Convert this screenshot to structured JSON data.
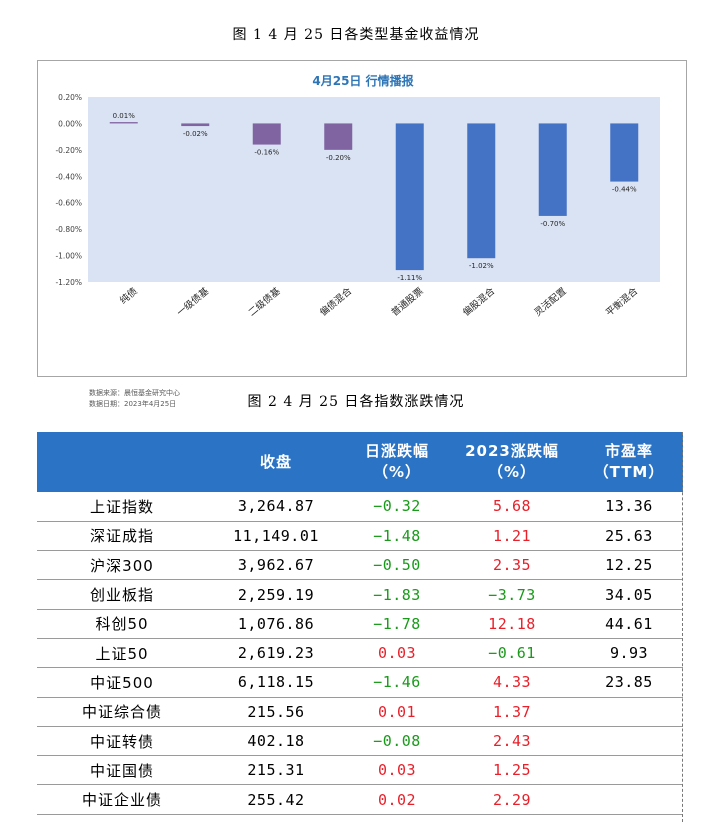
{
  "figure1": {
    "caption": "图 1  4 月 25 日各类型基金收益情况",
    "source_line": "数据来源：晨恒基金研究中心",
    "date_line": "数据日期：2023年4月25日"
  },
  "chart_data": {
    "type": "bar",
    "title": "4月25日  行情播报",
    "categories": [
      "纯债",
      "一级债基",
      "二级债基",
      "偏债混合",
      "普通股票",
      "偏股混合",
      "灵活配置",
      "平衡混合"
    ],
    "values": [
      0.01,
      -0.02,
      -0.16,
      -0.2,
      -1.11,
      -1.02,
      -0.7,
      -0.44
    ],
    "value_labels": [
      "0.01%",
      "-0.02%",
      "-0.16%",
      "-0.20%",
      "-1.11%",
      "-1.02%",
      "-0.70%",
      "-0.44%"
    ],
    "bar_colors": [
      "#8064a2",
      "#8064a2",
      "#8064a2",
      "#8064a2",
      "#4472c4",
      "#4472c4",
      "#4472c4",
      "#4472c4"
    ],
    "yticks": [
      "0.20%",
      "0.00%",
      "-0.20%",
      "-0.40%",
      "-0.60%",
      "-0.80%",
      "-1.00%",
      "-1.20%"
    ],
    "ylim": [
      -1.2,
      0.2
    ],
    "plot_bg": "#dae3f3",
    "grid": false
  },
  "figure2": {
    "caption": "图 2  4 月 25 日各指数涨跌情况",
    "headers": [
      "",
      "收盘",
      "日涨跌幅\n（%）",
      "2023涨跌幅\n（%）",
      "市盈率\n（TTM）"
    ],
    "rows": [
      {
        "name": "上证指数",
        "close": "3,264.87",
        "day": "−0.32",
        "ytd": "5.68",
        "pe": "13.36"
      },
      {
        "name": "深证成指",
        "close": "11,149.01",
        "day": "−1.48",
        "ytd": "1.21",
        "pe": "25.63"
      },
      {
        "name": "沪深300",
        "close": "3,962.67",
        "day": "−0.50",
        "ytd": "2.35",
        "pe": "12.25"
      },
      {
        "name": "创业板指",
        "close": "2,259.19",
        "day": "−1.83",
        "ytd": "−3.73",
        "pe": "34.05"
      },
      {
        "name": "科创50",
        "close": "1,076.86",
        "day": "−1.78",
        "ytd": "12.18",
        "pe": "44.61"
      },
      {
        "name": "上证50",
        "close": "2,619.23",
        "day": "0.03",
        "ytd": "−0.61",
        "pe": "9.93"
      },
      {
        "name": "中证500",
        "close": "6,118.15",
        "day": "−1.46",
        "ytd": "4.33",
        "pe": "23.85"
      },
      {
        "name": "中证综合债",
        "close": "215.56",
        "day": "0.01",
        "ytd": "1.37",
        "pe": ""
      },
      {
        "name": "中证转债",
        "close": "402.18",
        "day": "−0.08",
        "ytd": "2.43",
        "pe": ""
      },
      {
        "name": "中证国债",
        "close": "215.31",
        "day": "0.03",
        "ytd": "1.25",
        "pe": ""
      },
      {
        "name": "中证企业债",
        "close": "255.42",
        "day": "0.02",
        "ytd": "2.29",
        "pe": ""
      }
    ],
    "colors": {
      "header_bg": "#2a73c5",
      "negative": "#1a9a1a",
      "positive": "#e8202a"
    }
  }
}
